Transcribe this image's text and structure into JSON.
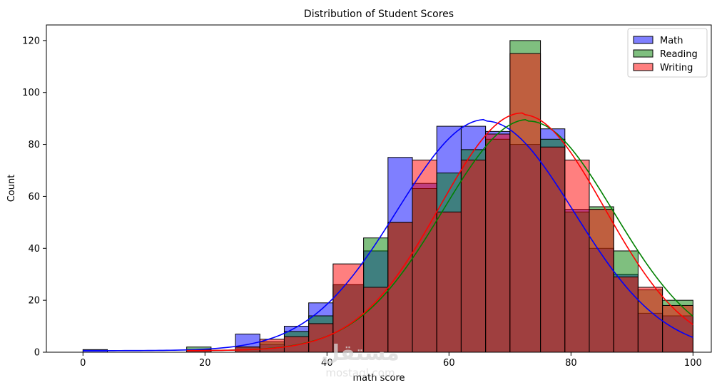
{
  "chart_data": {
    "type": "histogram",
    "title": "Distribution of Student Scores",
    "xlabel": "math score",
    "ylabel": "Count",
    "xlim": [
      -6,
      103
    ],
    "ylim": [
      0,
      126
    ],
    "x_ticks": [
      0,
      20,
      40,
      60,
      80,
      100
    ],
    "y_ticks": [
      0,
      20,
      40,
      60,
      80,
      100,
      120
    ],
    "legend_position": "top-right",
    "grid": false,
    "watermark": "مستقل",
    "watermark_sub": "mostaql.com",
    "series": [
      {
        "name": "Math",
        "color": "#0000ff",
        "kde": true,
        "bins": [
          {
            "start": 0,
            "end": 4,
            "count": 1
          },
          {
            "start": 17,
            "end": 21,
            "count": 1
          },
          {
            "start": 25,
            "end": 29,
            "count": 7
          },
          {
            "start": 29,
            "end": 33,
            "count": 3
          },
          {
            "start": 33,
            "end": 37,
            "count": 10
          },
          {
            "start": 37,
            "end": 41,
            "count": 19
          },
          {
            "start": 41,
            "end": 46,
            "count": 26
          },
          {
            "start": 46,
            "end": 50,
            "count": 39
          },
          {
            "start": 50,
            "end": 54,
            "count": 75
          },
          {
            "start": 54,
            "end": 58,
            "count": 65
          },
          {
            "start": 58,
            "end": 62,
            "count": 87
          },
          {
            "start": 62,
            "end": 66,
            "count": 87
          },
          {
            "start": 66,
            "end": 70,
            "count": 85
          },
          {
            "start": 70,
            "end": 75,
            "count": 80
          },
          {
            "start": 75,
            "end": 79,
            "count": 86
          },
          {
            "start": 79,
            "end": 83,
            "count": 55
          },
          {
            "start": 83,
            "end": 87,
            "count": 40
          },
          {
            "start": 87,
            "end": 91,
            "count": 30
          },
          {
            "start": 91,
            "end": 95,
            "count": 15
          },
          {
            "start": 95,
            "end": 100,
            "count": 14
          }
        ],
        "kde_peak": 89,
        "kde_mean": 66,
        "kde_sd": 14.5
      },
      {
        "name": "Reading",
        "color": "#008000",
        "kde": true,
        "bins": [
          {
            "start": 17,
            "end": 21,
            "count": 2
          },
          {
            "start": 25,
            "end": 29,
            "count": 2
          },
          {
            "start": 29,
            "end": 33,
            "count": 4
          },
          {
            "start": 33,
            "end": 37,
            "count": 8
          },
          {
            "start": 37,
            "end": 41,
            "count": 14
          },
          {
            "start": 41,
            "end": 46,
            "count": 26
          },
          {
            "start": 46,
            "end": 50,
            "count": 44
          },
          {
            "start": 50,
            "end": 54,
            "count": 50
          },
          {
            "start": 54,
            "end": 58,
            "count": 63
          },
          {
            "start": 58,
            "end": 62,
            "count": 69
          },
          {
            "start": 62,
            "end": 66,
            "count": 78
          },
          {
            "start": 66,
            "end": 70,
            "count": 82
          },
          {
            "start": 70,
            "end": 75,
            "count": 120
          },
          {
            "start": 75,
            "end": 79,
            "count": 82
          },
          {
            "start": 79,
            "end": 83,
            "count": 54
          },
          {
            "start": 83,
            "end": 87,
            "count": 56
          },
          {
            "start": 87,
            "end": 91,
            "count": 39
          },
          {
            "start": 91,
            "end": 95,
            "count": 24
          },
          {
            "start": 95,
            "end": 100,
            "count": 20
          }
        ],
        "kde_peak": 89,
        "kde_mean": 73,
        "kde_sd": 14.0
      },
      {
        "name": "Writing",
        "color": "#ff0000",
        "kde": true,
        "bins": [
          {
            "start": 17,
            "end": 21,
            "count": 1
          },
          {
            "start": 25,
            "end": 29,
            "count": 2
          },
          {
            "start": 29,
            "end": 33,
            "count": 5
          },
          {
            "start": 33,
            "end": 37,
            "count": 6
          },
          {
            "start": 37,
            "end": 41,
            "count": 11
          },
          {
            "start": 41,
            "end": 46,
            "count": 34
          },
          {
            "start": 46,
            "end": 50,
            "count": 25
          },
          {
            "start": 50,
            "end": 54,
            "count": 50
          },
          {
            "start": 54,
            "end": 58,
            "count": 74
          },
          {
            "start": 58,
            "end": 62,
            "count": 54
          },
          {
            "start": 62,
            "end": 66,
            "count": 74
          },
          {
            "start": 66,
            "end": 70,
            "count": 84
          },
          {
            "start": 70,
            "end": 75,
            "count": 115
          },
          {
            "start": 75,
            "end": 79,
            "count": 79
          },
          {
            "start": 79,
            "end": 83,
            "count": 74
          },
          {
            "start": 83,
            "end": 87,
            "count": 55
          },
          {
            "start": 87,
            "end": 91,
            "count": 29
          },
          {
            "start": 91,
            "end": 95,
            "count": 25
          },
          {
            "start": 95,
            "end": 100,
            "count": 18
          }
        ],
        "kde_peak": 91.5,
        "kde_mean": 72,
        "kde_sd": 13.5
      }
    ]
  }
}
